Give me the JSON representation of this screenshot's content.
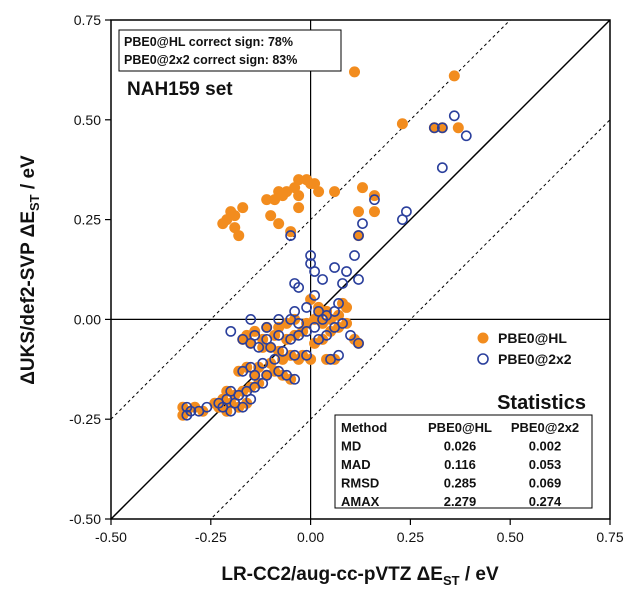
{
  "chart_data": {
    "type": "scatter",
    "xlabel": {
      "main": "LR-CC2/aug-cc-pVTZ ΔE",
      "sub": "ST",
      "unit": " / eV"
    },
    "ylabel": {
      "main": "ΔUKS/def2-SVP ΔE",
      "sub": "ST",
      "unit": " / eV"
    },
    "xlim": [
      -0.5,
      0.75
    ],
    "ylim": [
      -0.5,
      0.75
    ],
    "x_ticks": [
      "-0.50",
      "-0.25",
      "0.00",
      "0.25",
      "0.50",
      "0.75"
    ],
    "y_ticks": [
      "-0.50",
      "-0.25",
      "0.00",
      "0.25",
      "0.50",
      "0.75"
    ],
    "reference_lines": {
      "identity": "y = x",
      "offsets": [
        0.25,
        -0.25
      ],
      "zero_axes": true
    },
    "grid": false,
    "annotations": {
      "sign_lines": [
        "PBE0@HL correct sign: 78%",
        "PBE0@2x2 correct sign: 83%"
      ],
      "set_label": "NAH159 set"
    },
    "legend_position": "right",
    "series": [
      {
        "name": "PBE0@HL",
        "marker": "filled-circle",
        "color": "#f28c1e",
        "points": [
          [
            0.11,
            0.62
          ],
          [
            0.36,
            0.61
          ],
          [
            0.23,
            0.49
          ],
          [
            0.31,
            0.48
          ],
          [
            0.33,
            0.48
          ],
          [
            0.37,
            0.48
          ],
          [
            -0.01,
            0.35
          ],
          [
            -0.03,
            0.35
          ],
          [
            0.0,
            0.34
          ],
          [
            0.01,
            0.34
          ],
          [
            -0.04,
            0.33
          ],
          [
            -0.06,
            0.32
          ],
          [
            -0.09,
            0.3
          ],
          [
            -0.11,
            0.3
          ],
          [
            -0.08,
            0.32
          ],
          [
            -0.07,
            0.31
          ],
          [
            -0.03,
            0.31
          ],
          [
            0.02,
            0.32
          ],
          [
            0.06,
            0.32
          ],
          [
            0.13,
            0.33
          ],
          [
            0.16,
            0.31
          ],
          [
            0.16,
            0.27
          ],
          [
            0.12,
            0.27
          ],
          [
            0.12,
            0.21
          ],
          [
            -0.17,
            0.28
          ],
          [
            -0.19,
            0.26
          ],
          [
            -0.21,
            0.25
          ],
          [
            -0.2,
            0.27
          ],
          [
            -0.22,
            0.24
          ],
          [
            -0.19,
            0.23
          ],
          [
            -0.18,
            0.21
          ],
          [
            -0.1,
            0.26
          ],
          [
            -0.08,
            0.24
          ],
          [
            -0.05,
            0.22
          ],
          [
            -0.03,
            0.28
          ],
          [
            0.0,
            0.05
          ],
          [
            0.02,
            0.03
          ],
          [
            0.04,
            0.02
          ],
          [
            0.01,
            0.0
          ],
          [
            0.07,
            0.01
          ],
          [
            0.08,
            0.04
          ],
          [
            0.09,
            0.03
          ],
          [
            0.03,
            -0.01
          ],
          [
            -0.01,
            -0.01
          ],
          [
            -0.04,
            0.0
          ],
          [
            -0.06,
            -0.01
          ],
          [
            -0.08,
            -0.02
          ],
          [
            -0.11,
            -0.02
          ],
          [
            -0.14,
            -0.03
          ],
          [
            -0.16,
            -0.04
          ],
          [
            -0.17,
            -0.05
          ],
          [
            -0.15,
            -0.06
          ],
          [
            -0.12,
            -0.07
          ],
          [
            -0.1,
            -0.07
          ],
          [
            -0.08,
            -0.08
          ],
          [
            -0.05,
            -0.09
          ],
          [
            -0.02,
            -0.09
          ],
          [
            0.0,
            -0.1
          ],
          [
            -0.03,
            -0.1
          ],
          [
            -0.07,
            -0.1
          ],
          [
            -0.1,
            -0.11
          ],
          [
            -0.13,
            -0.12
          ],
          [
            -0.16,
            -0.12
          ],
          [
            -0.18,
            -0.13
          ],
          [
            -0.14,
            -0.14
          ],
          [
            -0.11,
            -0.14
          ],
          [
            -0.09,
            -0.13
          ],
          [
            -0.07,
            -0.14
          ],
          [
            -0.05,
            -0.15
          ],
          [
            -0.13,
            -0.16
          ],
          [
            -0.15,
            -0.17
          ],
          [
            -0.17,
            -0.18
          ],
          [
            -0.19,
            -0.19
          ],
          [
            -0.21,
            -0.18
          ],
          [
            -0.22,
            -0.2
          ],
          [
            -0.2,
            -0.21
          ],
          [
            -0.18,
            -0.22
          ],
          [
            -0.16,
            -0.21
          ],
          [
            -0.24,
            -0.21
          ],
          [
            -0.23,
            -0.22
          ],
          [
            -0.21,
            -0.23
          ],
          [
            -0.27,
            -0.23
          ],
          [
            -0.29,
            -0.22
          ],
          [
            -0.32,
            -0.22
          ],
          [
            -0.31,
            -0.23
          ],
          [
            -0.32,
            -0.24
          ],
          [
            0.01,
            -0.06
          ],
          [
            0.03,
            -0.05
          ],
          [
            0.05,
            -0.03
          ],
          [
            0.07,
            -0.02
          ],
          [
            0.09,
            -0.01
          ],
          [
            0.11,
            -0.05
          ],
          [
            0.12,
            -0.06
          ],
          [
            0.04,
            -0.1
          ],
          [
            0.06,
            -0.1
          ],
          [
            -0.06,
            -0.05
          ],
          [
            -0.04,
            -0.04
          ],
          [
            -0.02,
            -0.03
          ],
          [
            -0.09,
            -0.04
          ],
          [
            -0.12,
            -0.05
          ],
          [
            0.02,
            0.01
          ],
          [
            0.05,
            0.0
          ]
        ]
      },
      {
        "name": "PBE0@2x2",
        "marker": "open-circle",
        "color": "#2a3f9c",
        "points": [
          [
            0.36,
            0.51
          ],
          [
            0.39,
            0.46
          ],
          [
            0.33,
            0.48
          ],
          [
            0.31,
            0.48
          ],
          [
            0.24,
            0.27
          ],
          [
            0.23,
            0.25
          ],
          [
            0.16,
            0.3
          ],
          [
            0.13,
            0.24
          ],
          [
            0.12,
            0.21
          ],
          [
            0.11,
            0.16
          ],
          [
            0.12,
            0.1
          ],
          [
            0.33,
            0.38
          ],
          [
            -0.05,
            0.21
          ],
          [
            0.0,
            0.16
          ],
          [
            0.0,
            0.14
          ],
          [
            0.01,
            0.12
          ],
          [
            -0.04,
            0.09
          ],
          [
            -0.03,
            0.08
          ],
          [
            0.01,
            0.06
          ],
          [
            0.03,
            0.1
          ],
          [
            0.06,
            0.13
          ],
          [
            0.09,
            0.12
          ],
          [
            0.08,
            0.09
          ],
          [
            0.07,
            0.04
          ],
          [
            -0.04,
            0.02
          ],
          [
            -0.01,
            0.03
          ],
          [
            0.02,
            0.02
          ],
          [
            0.04,
            0.01
          ],
          [
            0.06,
            0.02
          ],
          [
            -0.08,
            0.0
          ],
          [
            -0.05,
            0.0
          ],
          [
            -0.03,
            -0.01
          ],
          [
            0.01,
            -0.02
          ],
          [
            -0.11,
            -0.02
          ],
          [
            -0.14,
            -0.04
          ],
          [
            -0.17,
            -0.05
          ],
          [
            -0.15,
            -0.06
          ],
          [
            -0.13,
            -0.07
          ],
          [
            -0.1,
            -0.07
          ],
          [
            -0.07,
            -0.08
          ],
          [
            -0.04,
            -0.09
          ],
          [
            -0.01,
            -0.09
          ],
          [
            -0.09,
            -0.1
          ],
          [
            -0.12,
            -0.11
          ],
          [
            -0.15,
            -0.12
          ],
          [
            -0.17,
            -0.13
          ],
          [
            -0.14,
            -0.14
          ],
          [
            -0.11,
            -0.14
          ],
          [
            -0.08,
            -0.13
          ],
          [
            -0.06,
            -0.14
          ],
          [
            -0.04,
            -0.15
          ],
          [
            -0.12,
            -0.16
          ],
          [
            -0.14,
            -0.17
          ],
          [
            -0.16,
            -0.18
          ],
          [
            -0.18,
            -0.19
          ],
          [
            -0.2,
            -0.18
          ],
          [
            -0.21,
            -0.2
          ],
          [
            -0.19,
            -0.21
          ],
          [
            -0.17,
            -0.22
          ],
          [
            -0.15,
            -0.2
          ],
          [
            -0.23,
            -0.21
          ],
          [
            -0.22,
            -0.22
          ],
          [
            -0.2,
            -0.23
          ],
          [
            -0.26,
            -0.22
          ],
          [
            -0.28,
            -0.23
          ],
          [
            -0.31,
            -0.22
          ],
          [
            -0.31,
            -0.24
          ],
          [
            -0.3,
            -0.23
          ],
          [
            0.02,
            -0.05
          ],
          [
            0.04,
            -0.04
          ],
          [
            0.06,
            -0.02
          ],
          [
            0.08,
            -0.01
          ],
          [
            0.1,
            -0.04
          ],
          [
            0.12,
            -0.06
          ],
          [
            0.05,
            -0.1
          ],
          [
            0.07,
            -0.09
          ],
          [
            -0.05,
            -0.05
          ],
          [
            -0.03,
            -0.04
          ],
          [
            -0.01,
            -0.03
          ],
          [
            -0.08,
            -0.04
          ],
          [
            -0.11,
            -0.05
          ],
          [
            0.03,
            0.0
          ],
          [
            -0.15,
            0.0
          ],
          [
            -0.2,
            -0.03
          ]
        ]
      }
    ],
    "stats_table": {
      "title": "Statistics",
      "headers": [
        "Method",
        "PBE0@HL",
        "PBE0@2x2"
      ],
      "rows": [
        [
          "MD",
          "0.026",
          "0.002"
        ],
        [
          "MAD",
          "0.116",
          "0.053"
        ],
        [
          "RMSD",
          "0.285",
          "0.069"
        ],
        [
          "AMAX",
          "2.279",
          "0.274"
        ]
      ]
    }
  }
}
